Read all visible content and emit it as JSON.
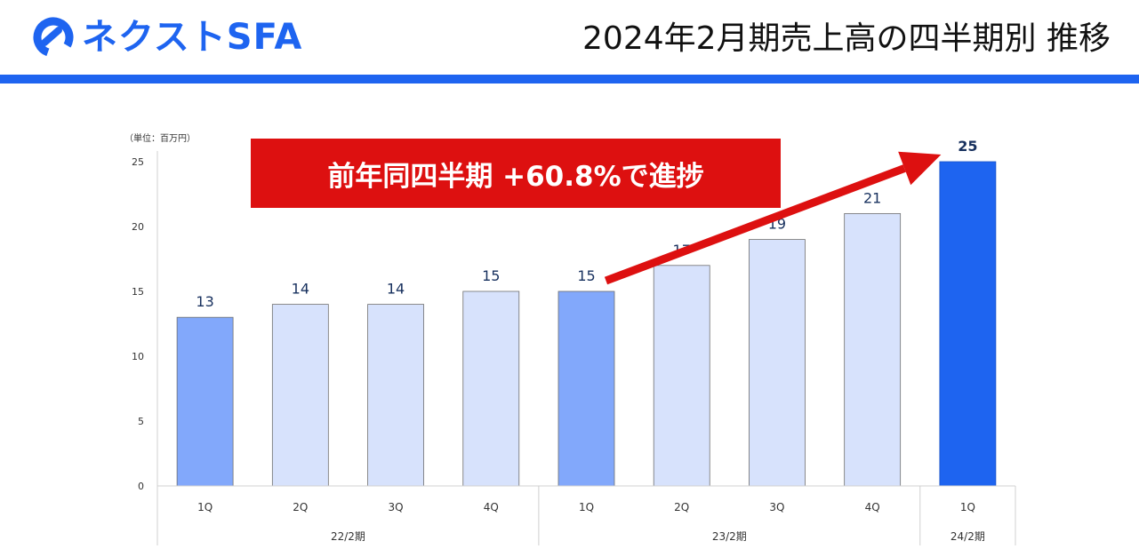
{
  "header": {
    "brand": "ネクストSFA",
    "title": "2024年2月期売上高の四半期別 推移"
  },
  "callout": {
    "text": "前年同四半期 +60.8%で進捗"
  },
  "colors": {
    "accent": "#1e64f0",
    "bar_light": "#d7e2fc",
    "bar_mid": "#82a8fb",
    "bar_strong": "#1e64f0",
    "callout": "#dd1010"
  },
  "chart_data": {
    "type": "bar",
    "unit_label": "（単位：百万円）",
    "categories": [
      "1Q",
      "2Q",
      "3Q",
      "4Q",
      "1Q",
      "2Q",
      "3Q",
      "4Q",
      "1Q"
    ],
    "groups": [
      {
        "label": "22/2期",
        "span": 4
      },
      {
        "label": "23/2期",
        "span": 4
      },
      {
        "label": "24/2期",
        "span": 1
      }
    ],
    "values": [
      13,
      14,
      14,
      15,
      15,
      17,
      19,
      21,
      25
    ],
    "value_labels": [
      "13",
      "14",
      "14",
      "15",
      "15",
      "17",
      "19",
      "21",
      "25"
    ],
    "bar_styles": [
      "mid",
      "light",
      "light",
      "light",
      "mid",
      "light",
      "light",
      "light",
      "strong"
    ],
    "ylim": [
      0,
      25
    ],
    "yticks": [
      0,
      5,
      10,
      15,
      20,
      25
    ],
    "grid": false,
    "arrow": {
      "from_index": 4,
      "to_index": 8
    }
  }
}
